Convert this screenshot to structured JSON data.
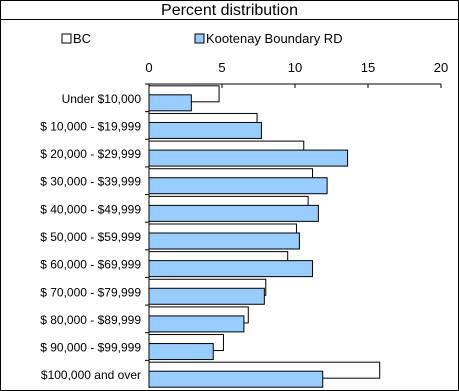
{
  "chart_data": {
    "type": "bar",
    "orientation": "horizontal",
    "title": "Percent distribution",
    "categories": [
      "Under $10,000",
      "$ 10,000 - $19,999",
      "$ 20,000 - $29,999",
      "$ 30,000 - $39,999",
      "$ 40,000 - $49,999",
      "$ 50,000 - $59,999",
      "$ 60,000 - $69,999",
      "$ 70,000 - $79,999",
      "$ 80,000 - $89,999",
      "$ 90,000 - $99,999",
      "$100,000 and over"
    ],
    "series": [
      {
        "name": "BC",
        "color": "#ffffff",
        "values": [
          4.8,
          7.4,
          10.6,
          11.2,
          10.9,
          10.1,
          9.5,
          8.0,
          6.8,
          5.1,
          15.8
        ]
      },
      {
        "name": "Kootenay Boundary RD",
        "color": "#99ccff",
        "values": [
          2.9,
          7.7,
          13.6,
          12.2,
          11.6,
          10.3,
          11.2,
          7.9,
          6.5,
          4.4,
          11.9
        ]
      }
    ],
    "xlim": [
      0,
      20
    ],
    "xticks": [
      "0",
      "5",
      "10",
      "15",
      "20"
    ],
    "legend_position": "top",
    "grid": false
  }
}
